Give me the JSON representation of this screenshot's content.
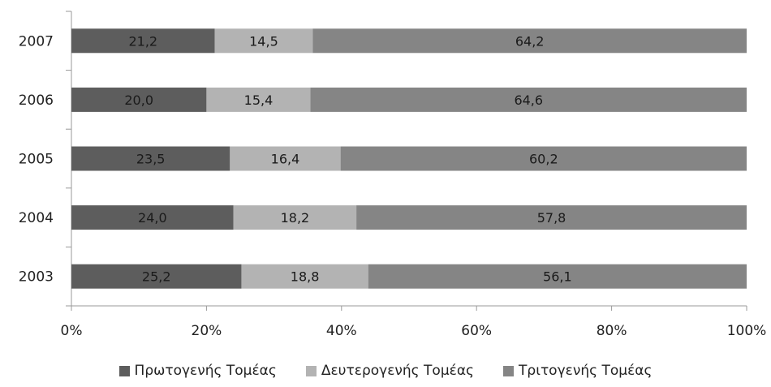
{
  "chart_data": {
    "type": "bar",
    "orientation": "horizontal",
    "stacked": "percent",
    "categories": [
      "2007",
      "2006",
      "2005",
      "2004",
      "2003"
    ],
    "series": [
      {
        "name": "Πρωτογενής Τομέας",
        "values": [
          21.2,
          20.0,
          23.5,
          24.0,
          25.2
        ],
        "labels": [
          "21,2",
          "20,0",
          "23,5",
          "24,0",
          "25,2"
        ],
        "color": "#5d5d5d"
      },
      {
        "name": "Δευτερογενής Τομέας",
        "values": [
          14.5,
          15.4,
          16.4,
          18.2,
          18.8
        ],
        "labels": [
          "14,5",
          "15,4",
          "16,4",
          "18,2",
          "18,8"
        ],
        "color": "#b3b3b3"
      },
      {
        "name": "Τριτογενής Τομέας",
        "values": [
          64.2,
          64.6,
          60.2,
          57.8,
          56.1
        ],
        "labels": [
          "64,2",
          "64,6",
          "60,2",
          "57,8",
          "56,1"
        ],
        "color": "#858585"
      }
    ],
    "x_ticks": [
      "0%",
      "20%",
      "40%",
      "60%",
      "80%",
      "100%"
    ],
    "xlim": [
      0,
      100
    ],
    "grid": false,
    "legend_position": "bottom"
  }
}
